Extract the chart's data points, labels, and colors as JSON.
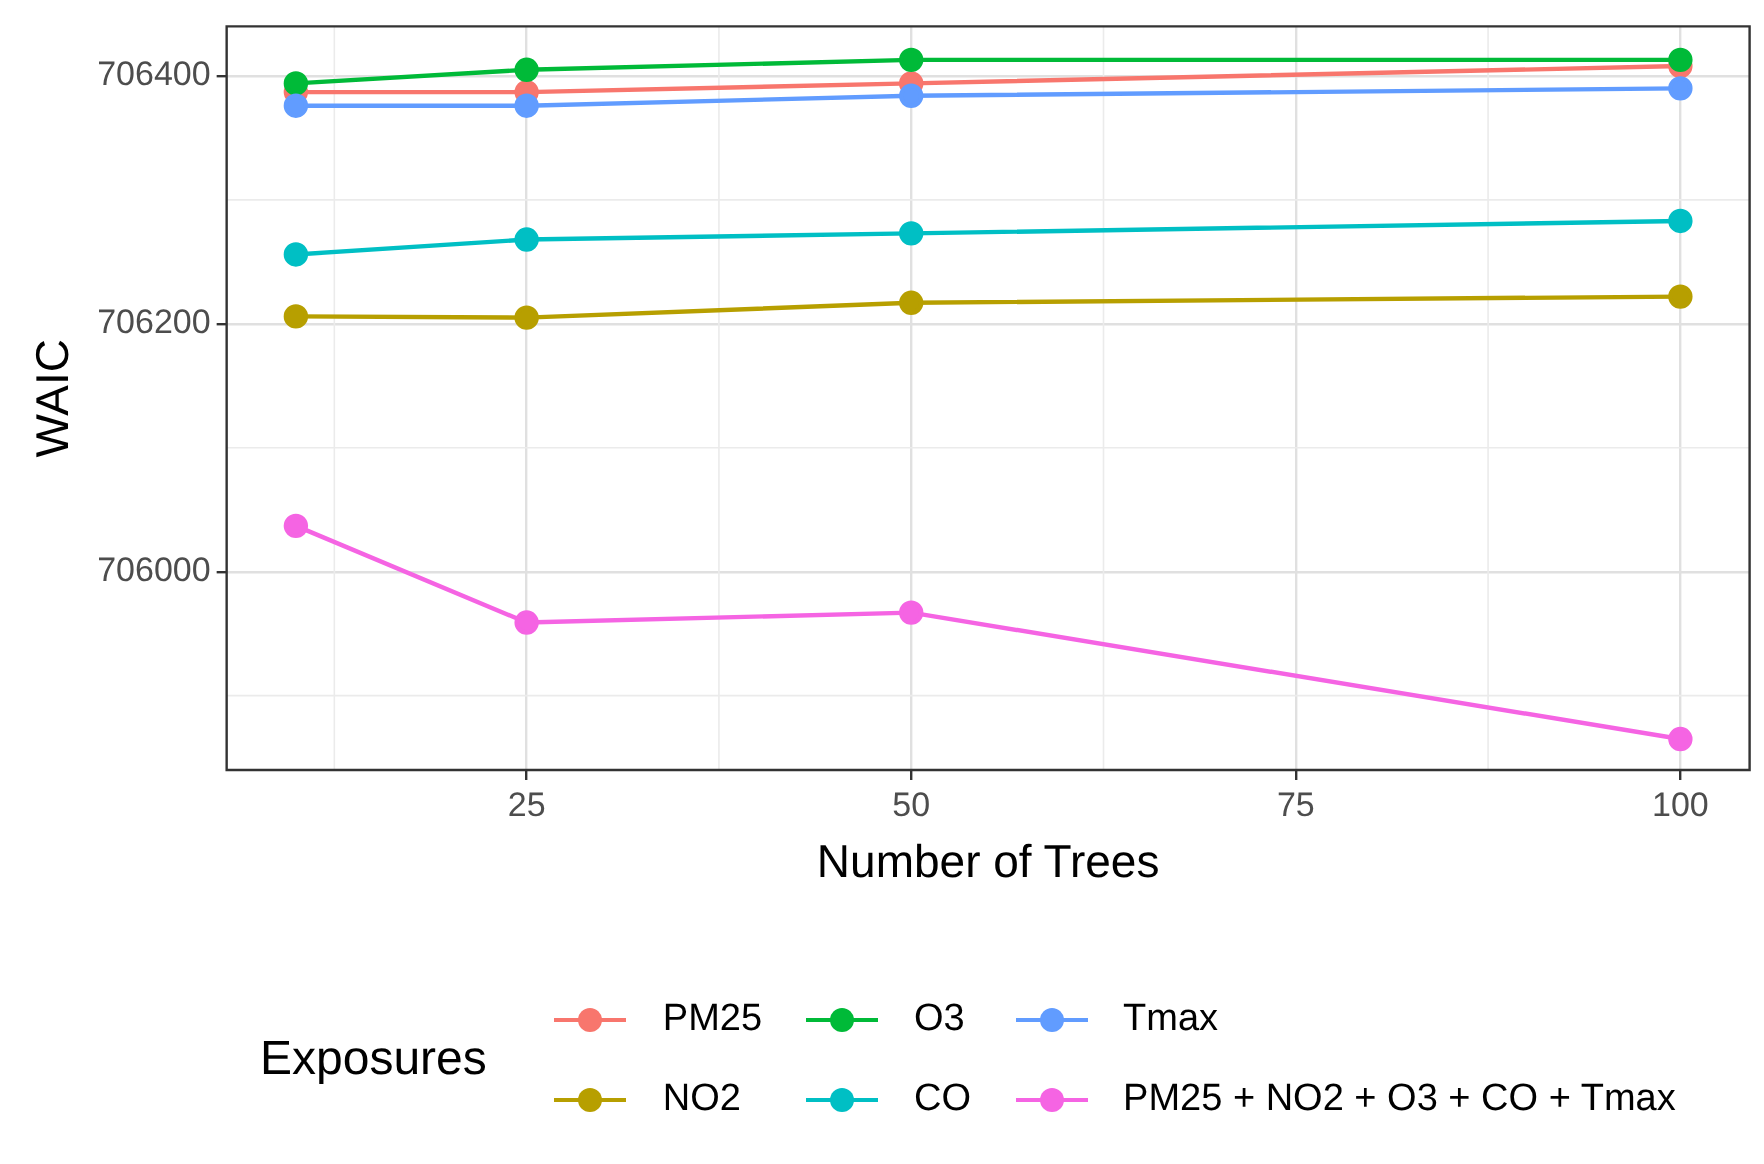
{
  "chart_data": {
    "type": "line",
    "xlabel": "Number of Trees",
    "ylabel": "WAIC",
    "legend_title": "Exposures",
    "legend": "bottom",
    "grid": true,
    "marker": "circle",
    "line_style": "solid",
    "x": [
      10,
      25,
      50,
      100
    ],
    "xlim": [
      5.5,
      104.5
    ],
    "xticks": [
      25,
      50,
      75,
      100
    ],
    "ylim": [
      705840,
      706440
    ],
    "yticks": [
      706000,
      706200,
      706400
    ],
    "series": [
      {
        "name": "PM25",
        "color": "#f8766d",
        "values": [
          706387,
          706387,
          706394,
          706408
        ]
      },
      {
        "name": "NO2",
        "color": "#b79f00",
        "values": [
          706206,
          706205,
          706217,
          706222
        ]
      },
      {
        "name": "O3",
        "color": "#00ba38",
        "values": [
          706394,
          706405,
          706413,
          706413
        ]
      },
      {
        "name": "CO",
        "color": "#00bfc4",
        "values": [
          706256,
          706268,
          706273,
          706283
        ]
      },
      {
        "name": "Tmax",
        "color": "#619cff",
        "values": [
          706376,
          706376,
          706384,
          706390
        ]
      },
      {
        "name": "PM25 + NO2 + O3 + CO + Tmax",
        "color": "#f564e3",
        "values": [
          706037,
          705959,
          705967,
          705865
        ]
      }
    ]
  }
}
